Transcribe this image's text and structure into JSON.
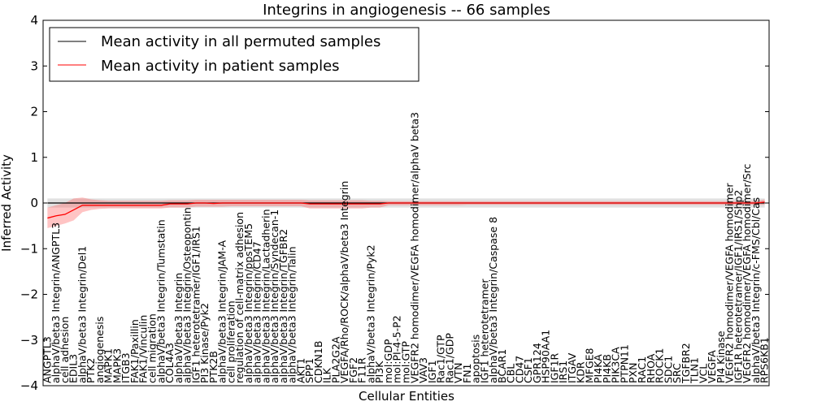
{
  "chart_data": {
    "type": "line",
    "title": "Integrins in angiogenesis -- 66 samples",
    "xlabel": "Cellular Entities",
    "ylabel": "Inferred Activity",
    "ylim": [
      -4,
      4
    ],
    "yticks": [
      -4,
      -3,
      -2,
      -1,
      0,
      1,
      2,
      3,
      4
    ],
    "legend": {
      "position": "top-left",
      "entries": [
        {
          "name": "Mean activity in all permuted samples",
          "color": "#000000"
        },
        {
          "name": "Mean activity in patient samples",
          "color": "#ff0000"
        }
      ]
    },
    "categories": [
      "ANGPTL3",
      "alphaV/beta3 Integrin/ANGPTL3",
      "cell adhesion",
      "EDIL3",
      "alphaV/beta3 Integrin/Del1",
      "PTK2",
      "angiogenesis",
      "MAPK1",
      "MAPK3",
      "ITGB3",
      "FAK1/Paxillin",
      "FAK1/Vinculin",
      "cell migration",
      "alphaV/beta3 Integrin/Tumstatin",
      "COL4A3",
      "alphaV/beta3 Integrin",
      "alphaV/beta3 Integrin/Osteopontin",
      "IGF1 heterotetramer/IGF1/IRS1",
      "PI3 Kinase/Pyk2",
      "PTK2B",
      "alphaV/beta3 Integrin/JAM-A",
      "cell proliferation",
      "regulation of cell-matrix adhesion",
      "alphaV/beta3 Integrin/ppsTEM5",
      "alphaV/beta3 Integrin/CD47",
      "alphaV/beta3 Integrin/Lactadherin",
      "alphaV/beta3 Integrin/Syndecan-1",
      "alphaV/beta3 Integrin/TGFBR2",
      "alphaV/beta3 Integrin/Talin",
      "AKT1",
      "SPP1",
      "CDKN1B",
      "ILK",
      "PLA2G2A",
      "VEGFA/Rho/ROCK/alphaV/beta3 Integrin",
      "FGF2",
      "F11R",
      "alphaV/beta3 Integrin/Pyk2",
      "PI3K",
      "mol:GDP",
      "mol:PI-4-5-P2",
      "mol:GTP",
      "VEGFR2 homodimer/VEGFA homodimer/alphaV beta3",
      "VAV3",
      "IGF1",
      "Rac1/GTP",
      "Rac1/GDP",
      "VTN",
      "FN1",
      "apoptosis",
      "IGF1 heterotetramer",
      "alphaV/beta3 Integrin/Caspase 8",
      "BCAR1",
      "CBL",
      "CD47",
      "CSF1",
      "GPR124",
      "HSP90AA1",
      "IGF1R",
      "IRS1",
      "ITGAV",
      "KDR",
      "MFGE8",
      "PI4KA",
      "PI4KB",
      "PIK3CA",
      "PTPN11",
      "PXN",
      "RAC1",
      "RHOA",
      "ROCK1",
      "SDC1",
      "SRC",
      "TGFBR2",
      "TLN1",
      "VCL",
      "VEGFA",
      "PI4 Kinase",
      "VEGFR2 homodimer/VEGFA homodimer",
      "IGF1R heterotetramer/IGF1/IRS1/Shp2",
      "VEGFR2 homodimer/VEGFA homodimer/Src",
      "alphaV/beta3 Integrin/c-FMS/Cbl/Cas",
      "RPS6KB1"
    ],
    "series": [
      {
        "name": "Mean activity in all permuted samples",
        "color": "#000000",
        "values": [
          0,
          0,
          0,
          0,
          0,
          0,
          0,
          0,
          0,
          0,
          0,
          0,
          0,
          0,
          0,
          0,
          0,
          0,
          0,
          0,
          0,
          0,
          0,
          0,
          0,
          0,
          0,
          0,
          0,
          0,
          0,
          0,
          0,
          0,
          0,
          0,
          0,
          0,
          0,
          0,
          0,
          0,
          0,
          0,
          0,
          0,
          0,
          0,
          0,
          0,
          0,
          0,
          0,
          0,
          0,
          0,
          0,
          0,
          0,
          0,
          0,
          0,
          0,
          0,
          0,
          0,
          0,
          0,
          0,
          0,
          0,
          0,
          0,
          0,
          0,
          0,
          0,
          0,
          0,
          0,
          0,
          0,
          0
        ],
        "band_lower": [
          -0.1,
          -0.1,
          -0.1,
          -0.1,
          -0.1,
          -0.1,
          -0.1,
          -0.1,
          -0.1,
          -0.1,
          -0.1,
          -0.1,
          -0.1,
          -0.1,
          -0.1,
          -0.1,
          -0.1,
          -0.1,
          -0.1,
          -0.1,
          -0.1,
          -0.1,
          -0.1,
          -0.1,
          -0.1,
          -0.1,
          -0.1,
          -0.1,
          -0.1,
          -0.1,
          -0.1,
          -0.1,
          -0.1,
          -0.1,
          -0.1,
          -0.1,
          -0.1,
          -0.1,
          -0.1,
          -0.1,
          -0.1,
          -0.1,
          -0.1,
          -0.1,
          -0.1,
          -0.1,
          -0.1,
          -0.1,
          -0.1,
          -0.1,
          -0.1,
          -0.1,
          -0.1,
          -0.1,
          -0.1,
          -0.1,
          -0.1,
          -0.1,
          -0.1,
          -0.1,
          -0.1,
          -0.1,
          -0.1,
          -0.1,
          -0.1,
          -0.1,
          -0.1,
          -0.1,
          -0.1,
          -0.1,
          -0.1,
          -0.1,
          -0.1,
          -0.1,
          -0.1,
          -0.1,
          -0.1,
          -0.1,
          -0.1,
          -0.1,
          -0.1,
          -0.1,
          -0.1
        ],
        "band_upper": [
          0.1,
          0.1,
          0.1,
          0.1,
          0.1,
          0.1,
          0.1,
          0.1,
          0.1,
          0.1,
          0.1,
          0.1,
          0.1,
          0.1,
          0.1,
          0.1,
          0.1,
          0.1,
          0.1,
          0.1,
          0.1,
          0.1,
          0.1,
          0.1,
          0.1,
          0.1,
          0.1,
          0.1,
          0.1,
          0.1,
          0.1,
          0.1,
          0.1,
          0.1,
          0.1,
          0.1,
          0.1,
          0.1,
          0.1,
          0.1,
          0.1,
          0.1,
          0.1,
          0.1,
          0.1,
          0.1,
          0.1,
          0.1,
          0.1,
          0.1,
          0.1,
          0.1,
          0.1,
          0.1,
          0.1,
          0.1,
          0.1,
          0.1,
          0.1,
          0.1,
          0.1,
          0.1,
          0.1,
          0.1,
          0.1,
          0.1,
          0.1,
          0.1,
          0.1,
          0.1,
          0.1,
          0.1,
          0.1,
          0.1,
          0.1,
          0.1,
          0.1,
          0.1,
          0.1,
          0.1,
          0.1,
          0.1,
          0.1
        ]
      },
      {
        "name": "Mean activity in patient samples",
        "color": "#ff0000",
        "values": [
          -0.33,
          -0.28,
          -0.25,
          -0.15,
          -0.05,
          -0.05,
          -0.05,
          -0.05,
          -0.05,
          -0.05,
          -0.05,
          -0.05,
          -0.05,
          -0.05,
          -0.02,
          -0.02,
          -0.02,
          0,
          0,
          -0.01,
          0,
          0,
          0,
          0,
          0,
          0,
          0,
          0,
          0,
          0,
          -0.02,
          -0.02,
          -0.02,
          -0.02,
          -0.02,
          -0.02,
          -0.02,
          -0.02,
          -0.02,
          0,
          0,
          0,
          0,
          0,
          0,
          0,
          0,
          0,
          0,
          0,
          0,
          0,
          0,
          0,
          0,
          0,
          0,
          0,
          0,
          0,
          0,
          0,
          0,
          0,
          0,
          0,
          0,
          0,
          0,
          0,
          0,
          0,
          0,
          0,
          0,
          0,
          0,
          0,
          0,
          0,
          0,
          0,
          0.02
        ],
        "band_lower": [
          -0.55,
          -0.5,
          -0.45,
          -0.38,
          -0.2,
          -0.15,
          -0.13,
          -0.12,
          -0.12,
          -0.12,
          -0.12,
          -0.12,
          -0.12,
          -0.12,
          -0.1,
          -0.1,
          -0.1,
          -0.08,
          -0.08,
          -0.08,
          -0.08,
          -0.07,
          -0.07,
          -0.07,
          -0.07,
          -0.07,
          -0.07,
          -0.07,
          -0.07,
          -0.07,
          -0.12,
          -0.12,
          -0.12,
          -0.12,
          -0.12,
          -0.12,
          -0.12,
          -0.1,
          -0.1,
          -0.05,
          -0.05,
          -0.05,
          -0.05,
          -0.05,
          -0.05,
          -0.05,
          -0.05,
          -0.05,
          -0.04,
          -0.04,
          -0.04,
          -0.04,
          -0.04,
          -0.04,
          -0.04,
          -0.04,
          -0.04,
          -0.04,
          -0.04,
          -0.04,
          -0.04,
          -0.04,
          -0.04,
          -0.04,
          -0.04,
          -0.04,
          -0.04,
          -0.04,
          -0.04,
          -0.04,
          -0.04,
          -0.04,
          -0.04,
          -0.04,
          -0.04,
          -0.04,
          -0.04,
          -0.04,
          -0.04,
          -0.04,
          -0.04,
          -0.04,
          -0.04
        ],
        "band_upper": [
          -0.1,
          -0.05,
          0,
          0.1,
          0.12,
          0.08,
          0.06,
          0.05,
          0.05,
          0.05,
          0.05,
          0.05,
          0.05,
          0.05,
          0.06,
          0.06,
          0.06,
          0.07,
          0.07,
          0.07,
          0.07,
          0.07,
          0.07,
          0.07,
          0.07,
          0.07,
          0.07,
          0.07,
          0.07,
          0.07,
          0.06,
          0.06,
          0.06,
          0.06,
          0.06,
          0.06,
          0.06,
          0.05,
          0.05,
          0.04,
          0.04,
          0.04,
          0.04,
          0.04,
          0.04,
          0.04,
          0.04,
          0.04,
          0.04,
          0.04,
          0.04,
          0.04,
          0.04,
          0.04,
          0.04,
          0.04,
          0.04,
          0.04,
          0.04,
          0.04,
          0.04,
          0.04,
          0.04,
          0.04,
          0.04,
          0.04,
          0.04,
          0.04,
          0.04,
          0.04,
          0.04,
          0.04,
          0.04,
          0.04,
          0.04,
          0.04,
          0.04,
          0.04,
          0.04,
          0.04,
          0.04,
          0.04,
          0.08
        ]
      }
    ]
  }
}
